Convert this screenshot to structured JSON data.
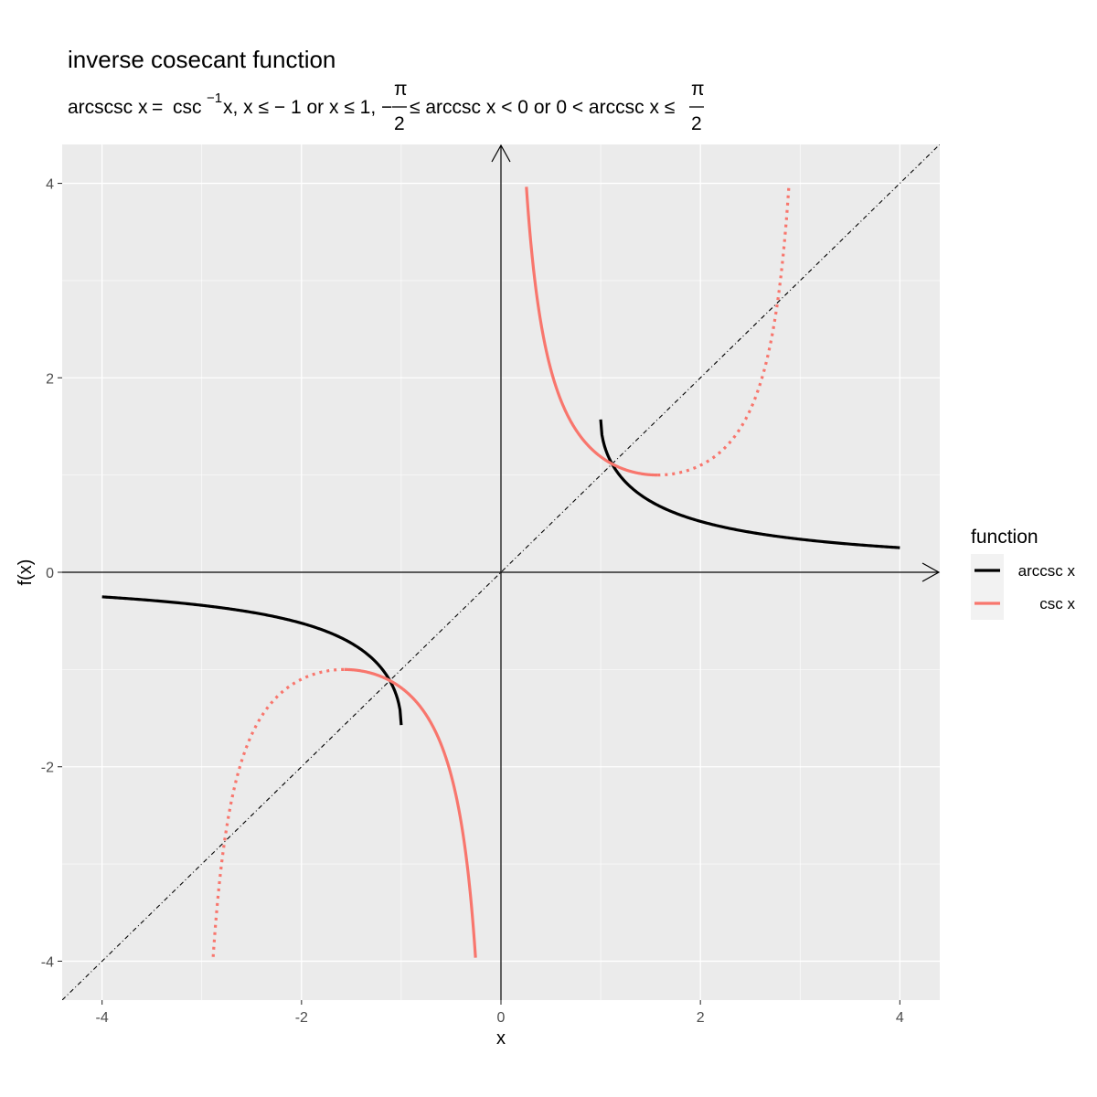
{
  "chart_data": {
    "type": "line",
    "title": "inverse cosecant function",
    "subtitle": {
      "lhs": "arcscsc x",
      "eq": "=",
      "csc": "csc",
      "sup": "−1",
      "cond1": "x, x ≤ − 1 or x ≤ 1, −",
      "pi": "π",
      "two": "2",
      "cond2": "≤ arccsc x < 0 or 0 < arccsc x ≤"
    },
    "xlabel": "x",
    "ylabel": "f(x)",
    "xlim": [
      -4.4,
      4.4
    ],
    "ylim": [
      -4.4,
      4.4
    ],
    "x_ticks": [
      -4,
      -2,
      0,
      2,
      4
    ],
    "y_ticks": [
      -4,
      -2,
      0,
      2,
      4
    ],
    "x_tick_labels": [
      "-4",
      "-2",
      "0",
      "2",
      "4"
    ],
    "y_tick_labels": [
      "-4",
      "-2",
      "0",
      "2",
      "4"
    ],
    "grid": true,
    "panel_background": "#ebebeb",
    "legend": {
      "title": "function",
      "position": "right",
      "entries": [
        {
          "label": "arccsc x",
          "color": "#000000"
        },
        {
          "label": "csc x",
          "color": "#f8766d"
        }
      ]
    },
    "reference_line": {
      "label": "y = x",
      "style": "dotdash",
      "color": "#000000"
    },
    "series": [
      {
        "key": "arccsc",
        "function": "arccsc",
        "color": "#000000",
        "style": "solid",
        "segments": [
          [
            -4,
            -1
          ],
          [
            1,
            4
          ]
        ]
      },
      {
        "key": "csc",
        "function": "csc",
        "color": "#f8766d",
        "style": "solid",
        "segments": [
          [
            -1.5708,
            -0.255
          ],
          [
            0.255,
            1.5708
          ]
        ]
      },
      {
        "key": "csc_ext",
        "function": "csc",
        "color": "#f8766d",
        "style": "dotted",
        "segments": [
          [
            -2.886,
            -1.5708
          ],
          [
            1.5708,
            2.886
          ]
        ]
      }
    ]
  }
}
